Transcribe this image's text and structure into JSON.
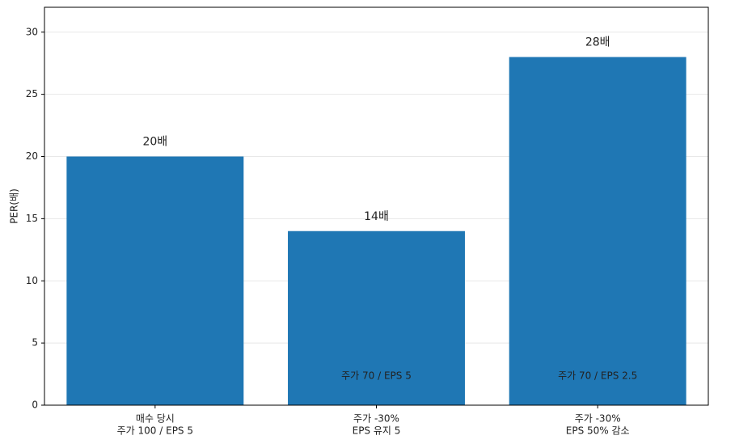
{
  "chart_data": {
    "type": "bar",
    "categories": [
      [
        "매수 당시",
        "주가 100 / EPS 5"
      ],
      [
        "주가 -30%",
        "EPS 유지 5"
      ],
      [
        "주가 -30%",
        "EPS 50% 감소"
      ]
    ],
    "values": [
      20,
      14,
      28
    ],
    "value_labels": [
      "20배",
      "14배",
      "28배"
    ],
    "bar_notes": [
      null,
      "주가 70 / EPS 5",
      "주가 70 / EPS 2.5"
    ],
    "color": "#1f77b4",
    "ylabel": "PER(배)",
    "ylim": [
      0,
      32
    ],
    "yticks": [
      0,
      5,
      10,
      15,
      20,
      25,
      30
    ],
    "grid": true
  }
}
